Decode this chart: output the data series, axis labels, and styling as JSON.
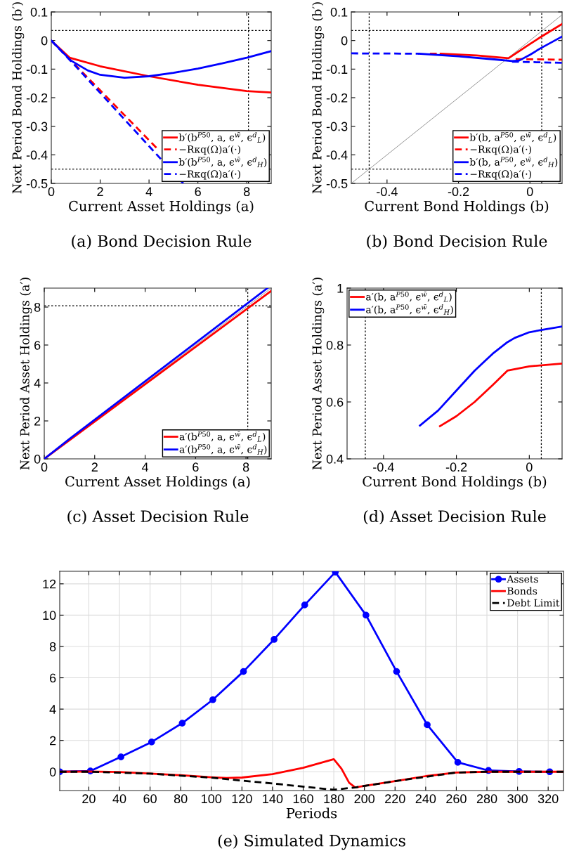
{
  "chart_data": [
    {
      "type": "line",
      "title": "(a) Bond Decision Rule",
      "xlabel": "Current Asset Holdings (a)",
      "ylabel": "Next Period Bond Holdings (b′)",
      "xlim": [
        0,
        9
      ],
      "ylim": [
        -0.5,
        0.1
      ],
      "xticks": [
        0,
        2,
        4,
        6,
        8
      ],
      "yticks": [
        -0.5,
        -0.4,
        -0.3,
        -0.2,
        -0.1,
        0,
        0.1
      ],
      "legend": "bottom right",
      "grid": false,
      "ref_lines": [
        {
          "axis": "y",
          "value": 0.035,
          "line_style": "dotted",
          "color": "#000000"
        },
        {
          "axis": "y",
          "value": -0.45,
          "line_style": "dotted",
          "color": "#000000"
        },
        {
          "axis": "x",
          "value": 8.07,
          "line_style": "dotted",
          "color": "#000000"
        }
      ],
      "series": [
        {
          "name": "b′(b$^{P50}$, a, ϵ$^{w̄}$, ϵ$^{d}$$_{L}$)",
          "color": "#ff0000",
          "line_style": "solid",
          "x": [
            0,
            0.75,
            2,
            4,
            6,
            8,
            9
          ],
          "values": [
            0,
            -0.06,
            -0.09,
            -0.125,
            -0.155,
            -0.177,
            -0.182
          ]
        },
        {
          "name": "−Rκq(Ω)a′(·)",
          "color": "#ff0000",
          "line_style": "dashed",
          "x": [
            0,
            1,
            4.3
          ],
          "values": [
            0,
            -0.087,
            -0.375
          ]
        },
        {
          "name": "b′(b$^{P50}$, a, ϵ$^{w̄}$, ϵ$^{d}$$_{H}$)",
          "color": "#0000ff",
          "line_style": "solid",
          "x": [
            0,
            0.8,
            1.5,
            2,
            3,
            4,
            5,
            6,
            7,
            8,
            9
          ],
          "values": [
            0,
            -0.07,
            -0.105,
            -0.12,
            -0.13,
            -0.125,
            -0.113,
            -0.098,
            -0.08,
            -0.06,
            -0.037
          ]
        },
        {
          "name": "−Rκq(Ω)a′(·)",
          "color": "#0000ff",
          "line_style": "dashed",
          "x": [
            0,
            1,
            5.4
          ],
          "values": [
            0,
            -0.09,
            -0.5
          ]
        }
      ]
    },
    {
      "type": "line",
      "title": "(b) Bond Decision Rule",
      "xlabel": "Current Bond Holdings (b)",
      "ylabel": "Next Period Bond Holdings (b′)",
      "xlim": [
        -0.5,
        0.09
      ],
      "ylim": [
        -0.5,
        0.1
      ],
      "xticks": [
        -0.4,
        -0.2,
        0
      ],
      "yticks": [
        -0.5,
        -0.4,
        -0.3,
        -0.2,
        -0.1,
        0,
        0.1
      ],
      "legend": "bottom right",
      "grid": false,
      "ref_lines": [
        {
          "axis": "y",
          "value": 0.035,
          "line_style": "dotted",
          "color": "#000000"
        },
        {
          "axis": "y",
          "value": -0.45,
          "line_style": "dotted",
          "color": "#000000"
        },
        {
          "axis": "x",
          "value": -0.45,
          "line_style": "dotted",
          "color": "#000000"
        },
        {
          "axis": "x",
          "value": 0.033,
          "line_style": "dotted",
          "color": "#000000"
        }
      ],
      "series": [
        {
          "color": "#808080",
          "line_style": "solid",
          "x": [
            -0.5,
            0.09
          ],
          "values": [
            -0.5,
            0.09
          ]
        },
        {
          "name": "b′(b, a$^{P50}$, ϵ$^{w̄}$, ϵ$^{d}$$_{L}$)",
          "color": "#ff0000",
          "line_style": "solid",
          "x": [
            -0.25,
            -0.15,
            -0.06,
            0,
            0.03,
            0.09
          ],
          "values": [
            -0.046,
            -0.052,
            -0.062,
            -0.012,
            0.012,
            0.058
          ]
        },
        {
          "name": "−Rκq(Ω)a′(·)",
          "color": "#ff0000",
          "line_style": "dashed",
          "x": [
            -0.28,
            -0.25,
            -0.1,
            -0.04,
            0.09
          ],
          "values": [
            -0.046,
            -0.046,
            null,
            -0.065,
            -0.067
          ]
        },
        {
          "name": "b′(b, a$^{P50}$, ϵ$^{w̄}$, ϵ$^{d}$$_{H}$)",
          "color": "#0000ff",
          "line_style": "solid",
          "x": [
            -0.31,
            -0.2,
            -0.1,
            -0.05,
            -0.03,
            0,
            0.03,
            0.09
          ],
          "values": [
            -0.046,
            -0.055,
            -0.066,
            -0.072,
            -0.07,
            -0.05,
            -0.027,
            0.014
          ]
        },
        {
          "name": "−Rκq(Ω)a′(·)",
          "color": "#0000ff",
          "line_style": "dashed",
          "x": [
            -0.5,
            -0.31,
            -0.1,
            -0.05,
            0.09
          ],
          "values": [
            -0.045,
            -0.046,
            null,
            -0.074,
            -0.078
          ]
        }
      ]
    },
    {
      "type": "line",
      "title": "(c) Asset Decision Rule",
      "xlabel": "Current Asset Holdings (a)",
      "ylabel": "Next Period Asset Holdings (a′)",
      "xlim": [
        0,
        9
      ],
      "ylim": [
        0,
        9
      ],
      "xticks": [
        0,
        2,
        4,
        6,
        8
      ],
      "yticks": [
        0,
        2,
        4,
        6,
        8
      ],
      "legend": "bottom right",
      "grid": false,
      "ref_lines": [
        {
          "axis": "y",
          "value": 8.07,
          "line_style": "dotted",
          "color": "#000000"
        },
        {
          "axis": "x",
          "value": 8.07,
          "line_style": "dotted",
          "color": "#000000"
        }
      ],
      "series": [
        {
          "color": "#808080",
          "line_style": "solid",
          "x": [
            0,
            9
          ],
          "values": [
            0,
            9
          ]
        },
        {
          "name": "a′(b$^{P50}$, a, ϵ$^{w̄}$, ϵ$^{d}$$_{L}$)",
          "color": "#ff0000",
          "line_style": "solid",
          "x": [
            0,
            9
          ],
          "values": [
            0,
            8.85
          ]
        },
        {
          "name": "a′(b$^{P50}$, a, ϵ$^{w̄}$, ϵ$^{d}$$_{H}$)",
          "color": "#0000ff",
          "line_style": "solid",
          "x": [
            0,
            1,
            8.85
          ],
          "values": [
            0,
            1.05,
            9
          ]
        }
      ]
    },
    {
      "type": "line",
      "title": "(d) Asset Decision Rule",
      "xlabel": "Current Bond Holdings (b)",
      "ylabel": "Next Period Asset Holdings (a′)",
      "xlim": [
        -0.5,
        0.09
      ],
      "ylim": [
        0.4,
        1
      ],
      "xticks": [
        -0.4,
        -0.2,
        0
      ],
      "yticks": [
        0.4,
        0.6,
        0.8,
        1
      ],
      "legend": "top left",
      "grid": false,
      "ref_lines": [
        {
          "axis": "x",
          "value": -0.45,
          "line_style": "dotted",
          "color": "#000000"
        },
        {
          "axis": "x",
          "value": 0.033,
          "line_style": "dotted",
          "color": "#000000"
        }
      ],
      "series": [
        {
          "name": "a′(b, a$^{P50}$, ϵ$^{w̄}$, ϵ$^{d}$$_{L}$)",
          "color": "#ff0000",
          "line_style": "solid",
          "x": [
            -0.245,
            -0.2,
            -0.15,
            -0.1,
            -0.06,
            0,
            0.09
          ],
          "values": [
            0.515,
            0.55,
            0.6,
            0.66,
            0.71,
            0.725,
            0.735
          ]
        },
        {
          "name": "a′(b, a$^{P50}$, ϵ$^{w̄}$, ϵ$^{d}$$_{H}$)",
          "color": "#0000ff",
          "line_style": "solid",
          "x": [
            -0.3,
            -0.25,
            -0.2,
            -0.15,
            -0.1,
            -0.06,
            -0.04,
            0,
            0.03,
            0.09
          ],
          "values": [
            0.517,
            0.57,
            0.64,
            0.71,
            0.77,
            0.81,
            0.825,
            0.845,
            0.852,
            0.865
          ]
        }
      ]
    },
    {
      "type": "line",
      "title": "(e) Simulated Dynamics",
      "xlabel": "Periods",
      "xlim": [
        1,
        330
      ],
      "ylim": [
        -1.2,
        12.8
      ],
      "xticks": [
        20,
        40,
        60,
        80,
        100,
        120,
        140,
        160,
        180,
        200,
        220,
        240,
        260,
        280,
        300,
        320
      ],
      "yticks": [
        0,
        2,
        4,
        6,
        8,
        10,
        12
      ],
      "legend": "top right",
      "grid": true,
      "series": [
        {
          "name": "Assets",
          "color": "#0000ff",
          "line_style": "solid",
          "marker": "circle",
          "x": [
            1,
            21,
            41,
            61,
            81,
            101,
            121,
            141,
            161,
            181,
            201,
            221,
            241,
            261,
            281,
            301,
            321
          ],
          "values": [
            0,
            0.05,
            0.95,
            1.9,
            3.1,
            4.6,
            6.4,
            8.45,
            10.65,
            12.75,
            10.0,
            6.4,
            3.0,
            0.6,
            0.08,
            0.02,
            0
          ]
        },
        {
          "name": "Bonds",
          "color": "#ff0000",
          "line_style": "solid",
          "x": [
            1,
            20,
            40,
            60,
            80,
            100,
            110,
            120,
            140,
            160,
            180,
            185,
            190,
            194,
            200,
            220,
            240,
            260,
            280,
            330
          ],
          "values": [
            0,
            0.02,
            -0.02,
            -0.12,
            -0.22,
            -0.35,
            -0.4,
            -0.37,
            -0.15,
            0.25,
            0.8,
            0.2,
            -0.7,
            -1.0,
            -0.9,
            -0.6,
            -0.28,
            -0.05,
            0,
            0
          ]
        },
        {
          "name": "Debt Limit",
          "color": "#000000",
          "line_style": "dashed",
          "x": [
            1,
            20,
            60,
            100,
            140,
            180,
            194,
            220,
            260,
            280,
            330
          ],
          "values": [
            0,
            0,
            -0.12,
            -0.38,
            -0.75,
            -1.15,
            -1.0,
            -0.6,
            -0.05,
            0,
            0
          ]
        }
      ]
    }
  ]
}
